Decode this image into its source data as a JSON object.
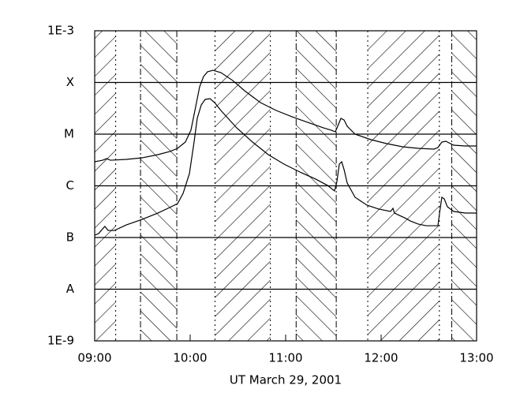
{
  "chart_data": {
    "type": "line",
    "ylog": true,
    "grid": true,
    "color": "#000000",
    "xlabel": "UT March 29, 2001",
    "xlim": [
      9.0,
      13.0
    ],
    "xticks": [
      {
        "value": 9,
        "label": "09:00"
      },
      {
        "value": 10,
        "label": "10:00"
      },
      {
        "value": 11,
        "label": "11:00"
      },
      {
        "value": 12,
        "label": "12:00"
      },
      {
        "value": 13,
        "label": "13:00"
      }
    ],
    "ylim": [
      1e-09,
      0.001
    ],
    "yticks": [
      {
        "value": 1e-09,
        "label": "1E-9"
      },
      {
        "value": 1e-08,
        "label": "A"
      },
      {
        "value": 1e-07,
        "label": "B"
      },
      {
        "value": 1e-06,
        "label": "C"
      },
      {
        "value": 1e-05,
        "label": "M"
      },
      {
        "value": 0.0001,
        "label": "X"
      },
      {
        "value": 0.001,
        "label": "1E-3"
      }
    ],
    "shaded_intervals": [
      {
        "start": 9.0,
        "end": 9.22,
        "hatch": "forward"
      },
      {
        "start": 9.48,
        "end": 9.86,
        "hatch": "back"
      },
      {
        "start": 10.26,
        "end": 10.84,
        "hatch": "forward"
      },
      {
        "start": 11.11,
        "end": 11.53,
        "hatch": "back"
      },
      {
        "start": 11.86,
        "end": 12.61,
        "hatch": "forward"
      },
      {
        "start": 12.74,
        "end": 13.0,
        "hatch": "back"
      }
    ],
    "series": [
      {
        "x": [
          9.0,
          9.083,
          9.124,
          9.165,
          9.331,
          9.496,
          9.661,
          9.785,
          9.868,
          9.95,
          10.008,
          10.058,
          10.099,
          10.14,
          10.182,
          10.24,
          10.322,
          10.446,
          10.57,
          10.736,
          10.901,
          11.066,
          11.231,
          11.397,
          11.479,
          11.521,
          11.545,
          11.579,
          11.612,
          11.645,
          11.727,
          11.893,
          12.058,
          12.223,
          12.388,
          12.554,
          12.595,
          12.636,
          12.678,
          12.76,
          12.884,
          13.0
        ],
        "values": [
          2.92e-06,
          3.13e-06,
          3.36e-06,
          3.13e-06,
          3.25e-06,
          3.48e-06,
          4.01e-06,
          4.61e-06,
          5.31e-06,
          7.03e-06,
          1.19e-05,
          3.42e-05,
          8.24e-05,
          0.00013,
          0.000161,
          0.000172,
          0.000155,
          0.000109,
          6.91e-05,
          4.08e-05,
          2.87e-05,
          2.17e-05,
          1.69e-05,
          1.32e-05,
          1.19e-05,
          1.11e-05,
          1.42e-05,
          2.02e-05,
          1.88e-05,
          1.42e-05,
          1e-05,
          7.82e-06,
          6.56e-06,
          5.7e-06,
          5.31e-06,
          5.13e-06,
          5.5e-06,
          7.03e-06,
          7.29e-06,
          6.11e-06,
          5.9e-06,
          5.9e-06
        ]
      },
      {
        "x": [
          9.0,
          9.041,
          9.083,
          9.107,
          9.14,
          9.207,
          9.331,
          9.496,
          9.661,
          9.785,
          9.868,
          9.926,
          9.992,
          10.041,
          10.074,
          10.116,
          10.157,
          10.207,
          10.256,
          10.322,
          10.488,
          10.653,
          10.818,
          10.983,
          11.149,
          11.314,
          11.438,
          11.512,
          11.537,
          11.562,
          11.587,
          11.612,
          11.645,
          11.727,
          11.851,
          11.975,
          12.099,
          12.124,
          12.14,
          12.264,
          12.306,
          12.388,
          12.471,
          12.595,
          12.612,
          12.636,
          12.661,
          12.694,
          12.76,
          12.884,
          13.0
        ],
        "values": [
          1.11e-07,
          1.19e-07,
          1.47e-07,
          1.64e-07,
          1.37e-07,
          1.37e-07,
          1.75e-07,
          2.24e-07,
          2.97e-07,
          3.8e-07,
          4.53e-07,
          7.16e-07,
          1.72e-06,
          7.03e-06,
          2.02e-05,
          3.67e-05,
          4.7e-05,
          4.86e-05,
          4.08e-05,
          2.87e-05,
          1.32e-05,
          7.03e-06,
          4.01e-06,
          2.63e-06,
          1.85e-06,
          1.35e-06,
          1.02e-06,
          7.96e-07,
          1.21e-06,
          2.63e-06,
          2.92e-06,
          2.06e-06,
          1.13e-06,
          6.01e-07,
          4.23e-07,
          3.55e-07,
          3.19e-07,
          3.67e-07,
          2.97e-07,
          2.32e-07,
          2.09e-07,
          1.82e-07,
          1.69e-07,
          1.69e-07,
          2.97e-07,
          6.01e-07,
          5.6e-07,
          3.94e-07,
          3.19e-07,
          2.97e-07,
          2.97e-07
        ]
      }
    ]
  }
}
